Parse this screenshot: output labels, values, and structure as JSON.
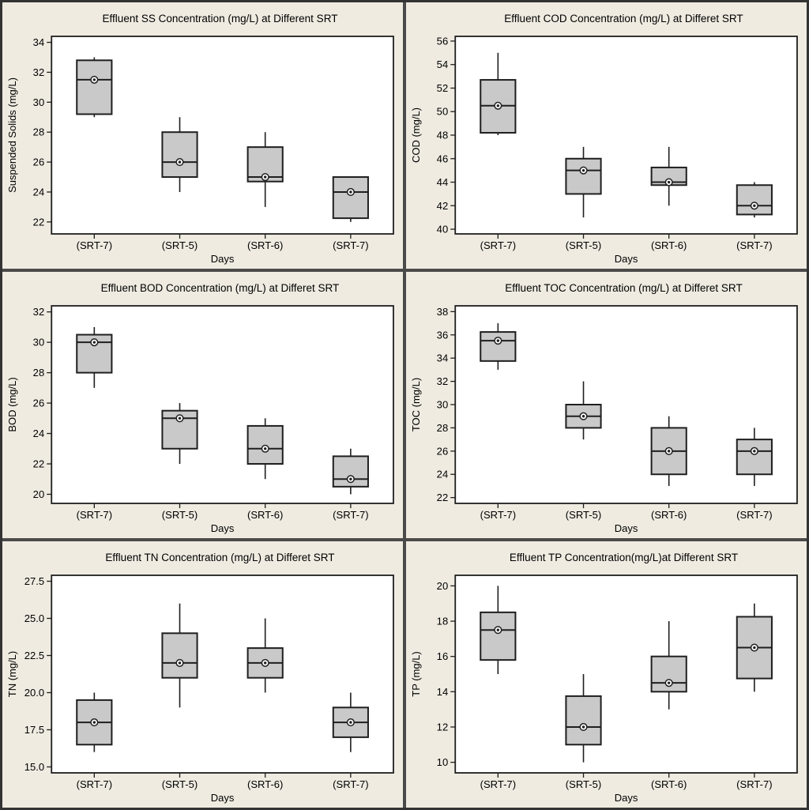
{
  "page": {
    "background_color": "#EFEBE1",
    "separator_color": "#4A4A4A",
    "plot_bg_color": "#FFFFFF",
    "box_fill_color": "#C9C9C9",
    "ink_color": "#1F1F1F"
  },
  "chart_data": [
    {
      "type": "box",
      "title": "Effluent SS Concentration (mg/L) at Different SRT",
      "xlabel": "Days",
      "ylabel": "Suspended Solids (mg/L)",
      "categories": [
        "(SRT-7)",
        "(SRT-5)",
        "(SRT-6)",
        "(SRT-7)"
      ],
      "ylim": [
        21.2,
        34.4
      ],
      "ytick_values": [
        22,
        24,
        26,
        28,
        30,
        32,
        34
      ],
      "ytick_labels": [
        "22",
        "24",
        "26",
        "28",
        "30",
        "32",
        "34"
      ],
      "boxes": [
        {
          "whislo": 29,
          "q1": 29.2,
          "med": 31.5,
          "q3": 32.8,
          "whishi": 33,
          "mean": 31.5
        },
        {
          "whislo": 24,
          "q1": 25,
          "med": 26,
          "q3": 28,
          "whishi": 29,
          "mean": 26
        },
        {
          "whislo": 23,
          "q1": 24.7,
          "med": 25,
          "q3": 27,
          "whishi": 28,
          "mean": 25
        },
        {
          "whislo": 22,
          "q1": 22.25,
          "med": 24,
          "q3": 25,
          "whishi": 25,
          "mean": 24
        }
      ]
    },
    {
      "type": "box",
      "title": "Effluent COD Concentration (mg/L) at Differet SRT",
      "xlabel": "Days",
      "ylabel": "COD (mg/L)",
      "categories": [
        "(SRT-7)",
        "(SRT-5)",
        "(SRT-6)",
        "(SRT-7)"
      ],
      "ylim": [
        39.6,
        56.4
      ],
      "ytick_values": [
        40,
        42,
        44,
        46,
        48,
        50,
        52,
        54,
        56
      ],
      "ytick_labels": [
        "40",
        "42",
        "44",
        "46",
        "48",
        "50",
        "52",
        "54",
        "56"
      ],
      "boxes": [
        {
          "whislo": 48,
          "q1": 48.2,
          "med": 50.5,
          "q3": 52.7,
          "whishi": 55,
          "mean": 50.5
        },
        {
          "whislo": 41,
          "q1": 43,
          "med": 45,
          "q3": 46,
          "whishi": 47,
          "mean": 45
        },
        {
          "whislo": 42,
          "q1": 43.75,
          "med": 44,
          "q3": 45.25,
          "whishi": 47,
          "mean": 44
        },
        {
          "whislo": 41,
          "q1": 41.25,
          "med": 42,
          "q3": 43.75,
          "whishi": 44,
          "mean": 42
        }
      ]
    },
    {
      "type": "box",
      "title": "Effluent BOD Concentration (mg/L) at Differet SRT",
      "xlabel": "Days",
      "ylabel": "BOD (mg/L)",
      "categories": [
        "(SRT-7)",
        "(SRT-5)",
        "(SRT-6)",
        "(SRT-7)"
      ],
      "ylim": [
        19.4,
        32.4
      ],
      "ytick_values": [
        20,
        22,
        24,
        26,
        28,
        30,
        32
      ],
      "ytick_labels": [
        "20",
        "22",
        "24",
        "26",
        "28",
        "30",
        "32"
      ],
      "boxes": [
        {
          "whislo": 27,
          "q1": 28,
          "med": 30,
          "q3": 30.5,
          "whishi": 31,
          "mean": 30
        },
        {
          "whislo": 22,
          "q1": 23,
          "med": 25,
          "q3": 25.5,
          "whishi": 26,
          "mean": 25
        },
        {
          "whislo": 21,
          "q1": 22,
          "med": 23,
          "q3": 24.5,
          "whishi": 25,
          "mean": 23
        },
        {
          "whislo": 20,
          "q1": 20.5,
          "med": 21,
          "q3": 22.5,
          "whishi": 23,
          "mean": 21
        }
      ]
    },
    {
      "type": "box",
      "title": "Effluent TOC Concentration (mg/L) at Differet SRT",
      "xlabel": "Days",
      "ylabel": "TOC (mg/L)",
      "categories": [
        "(SRT-7)",
        "(SRT-5)",
        "(SRT-6)",
        "(SRT-7)"
      ],
      "ylim": [
        21.5,
        38.5
      ],
      "ytick_values": [
        22,
        24,
        26,
        28,
        30,
        32,
        34,
        36,
        38
      ],
      "ytick_labels": [
        "22",
        "24",
        "26",
        "28",
        "30",
        "32",
        "34",
        "36",
        "38"
      ],
      "boxes": [
        {
          "whislo": 33,
          "q1": 33.75,
          "med": 35.5,
          "q3": 36.25,
          "whishi": 37,
          "mean": 35.5
        },
        {
          "whislo": 27,
          "q1": 28,
          "med": 29,
          "q3": 30,
          "whishi": 32,
          "mean": 29
        },
        {
          "whislo": 23,
          "q1": 24,
          "med": 26,
          "q3": 28,
          "whishi": 29,
          "mean": 26
        },
        {
          "whislo": 23,
          "q1": 24,
          "med": 26,
          "q3": 27,
          "whishi": 28,
          "mean": 26
        }
      ]
    },
    {
      "type": "box",
      "title": "Effluent TN Concentration (mg/L) at Differet SRT",
      "xlabel": "Days",
      "ylabel": "TN (mg/L)",
      "categories": [
        "(SRT-7)",
        "(SRT-5)",
        "(SRT-6)",
        "(SRT-7)"
      ],
      "ylim": [
        14.6,
        27.9
      ],
      "ytick_values": [
        15,
        17.5,
        20,
        22.5,
        25,
        27.5
      ],
      "ytick_labels": [
        "15.0",
        "17.5",
        "20.0",
        "22.5",
        "25.0",
        "27.5"
      ],
      "boxes": [
        {
          "whislo": 16,
          "q1": 16.5,
          "med": 18,
          "q3": 19.5,
          "whishi": 20,
          "mean": 18
        },
        {
          "whislo": 19,
          "q1": 21,
          "med": 22,
          "q3": 24,
          "whishi": 26,
          "mean": 22
        },
        {
          "whislo": 20,
          "q1": 21,
          "med": 22,
          "q3": 23,
          "whishi": 25,
          "mean": 22
        },
        {
          "whislo": 16,
          "q1": 17,
          "med": 18,
          "q3": 19,
          "whishi": 20,
          "mean": 18
        }
      ]
    },
    {
      "type": "box",
      "title": "Effluent TP Concentration(mg/L)at Different SRT",
      "xlabel": "Days",
      "ylabel": "TP (mg/L)",
      "categories": [
        "(SRT-7)",
        "(SRT-5)",
        "(SRT-6)",
        "(SRT-7)"
      ],
      "ylim": [
        9.4,
        20.6
      ],
      "ytick_values": [
        10,
        12,
        14,
        16,
        18,
        20
      ],
      "ytick_labels": [
        "10",
        "12",
        "14",
        "16",
        "18",
        "20"
      ],
      "boxes": [
        {
          "whislo": 15,
          "q1": 15.8,
          "med": 17.5,
          "q3": 18.5,
          "whishi": 20,
          "mean": 17.5
        },
        {
          "whislo": 10,
          "q1": 11,
          "med": 12,
          "q3": 13.75,
          "whishi": 15,
          "mean": 12
        },
        {
          "whislo": 13,
          "q1": 14,
          "med": 14.5,
          "q3": 16,
          "whishi": 18,
          "mean": 14.5
        },
        {
          "whislo": 14,
          "q1": 14.75,
          "med": 16.5,
          "q3": 18.25,
          "whishi": 19,
          "mean": 16.5
        }
      ]
    }
  ]
}
